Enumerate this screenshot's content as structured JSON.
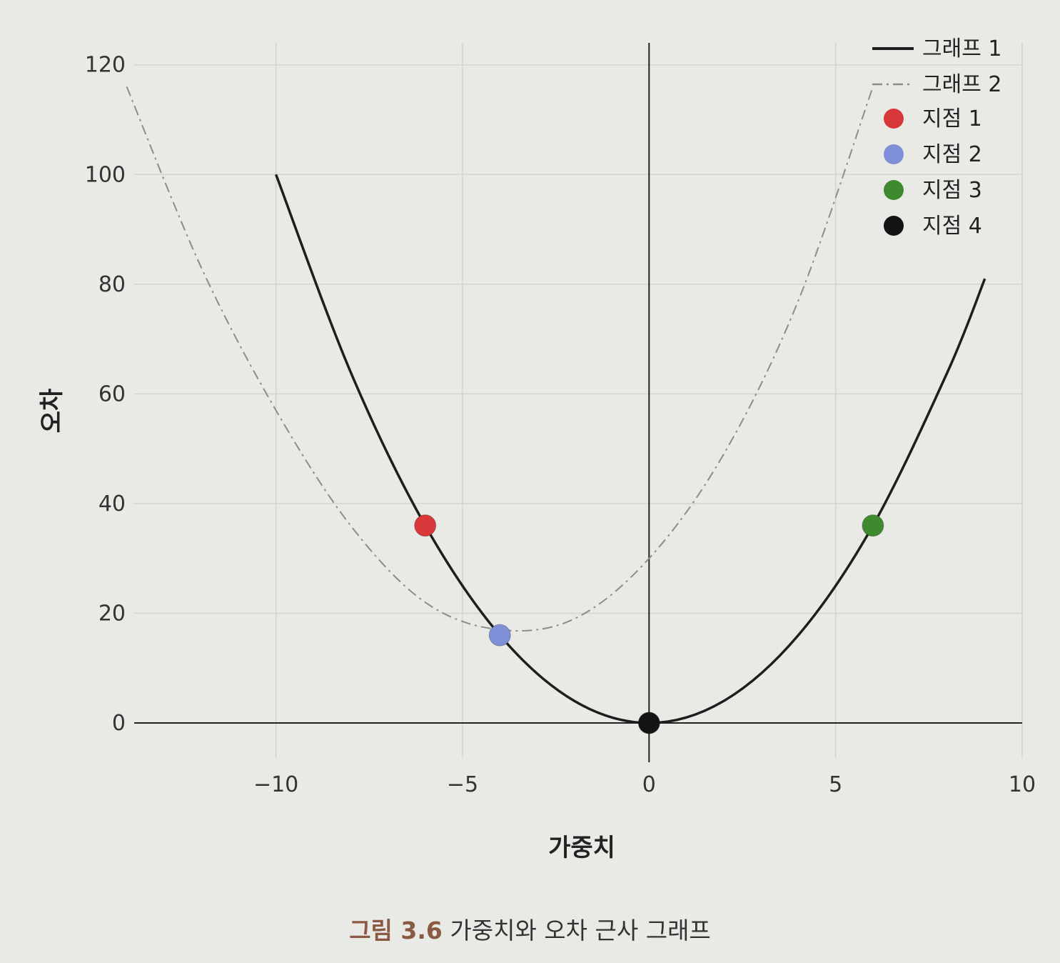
{
  "chart_data": {
    "type": "line",
    "title": "",
    "xlabel": "가중치",
    "ylabel": "오차",
    "xlim": [
      -13.8,
      10
    ],
    "ylim": [
      0,
      124
    ],
    "x_ticks": [
      -10,
      -5,
      0,
      5,
      10
    ],
    "x_tick_labels": [
      "−10",
      "−5",
      "0",
      "5",
      "10"
    ],
    "y_ticks": [
      0,
      20,
      40,
      60,
      80,
      100,
      120
    ],
    "y_tick_labels": [
      "0",
      "20",
      "40",
      "60",
      "80",
      "100",
      "120"
    ],
    "grid": true,
    "legend_position": "top-right",
    "series": [
      {
        "name": "그래프 1",
        "style": "solid",
        "color": "#1e1e1e",
        "points": [
          [
            -10,
            100
          ],
          [
            -8,
            64
          ],
          [
            -6,
            36
          ],
          [
            -4,
            16
          ],
          [
            -2,
            4
          ],
          [
            0,
            0
          ],
          [
            2,
            4
          ],
          [
            4,
            16
          ],
          [
            6,
            36
          ],
          [
            8,
            64
          ],
          [
            9,
            81
          ]
        ]
      },
      {
        "name": "그래프 2",
        "style": "dashdot",
        "color": "#8c8c8c",
        "points": [
          [
            -14,
            116
          ],
          [
            -12,
            83
          ],
          [
            -10,
            57
          ],
          [
            -8,
            36
          ],
          [
            -6,
            22
          ],
          [
            -4,
            17
          ],
          [
            -2,
            19
          ],
          [
            0,
            30
          ],
          [
            2,
            49
          ],
          [
            4,
            77
          ],
          [
            6,
            116
          ]
        ]
      }
    ],
    "markers": [
      {
        "name": "지점 1",
        "x": -6,
        "y": 36,
        "color": "#d8383a"
      },
      {
        "name": "지점 2",
        "x": -4,
        "y": 16,
        "color": "#7f8fd8"
      },
      {
        "name": "지점 3",
        "x": 6,
        "y": 36,
        "color": "#3f8a2e"
      },
      {
        "name": "지점 4",
        "x": 0,
        "y": 0,
        "color": "#141414"
      }
    ]
  },
  "caption": {
    "figure_number": "그림 3.6",
    "text": "가중치와 오차 근사 그래프"
  }
}
